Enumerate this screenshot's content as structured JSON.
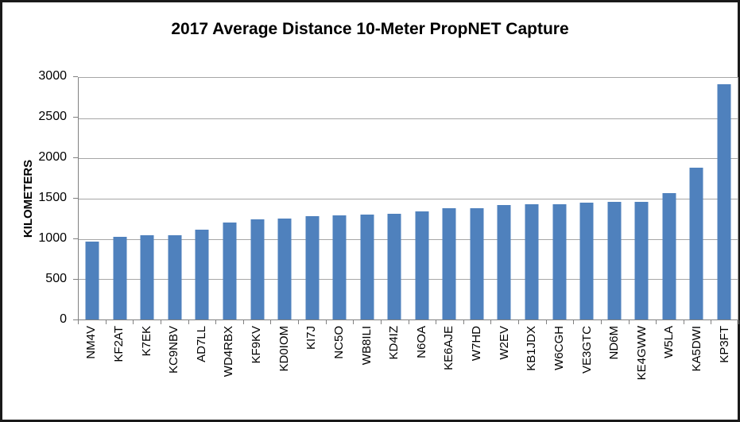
{
  "chart_data": {
    "type": "bar",
    "title": "2017 Average Distance 10-Meter PropNET Capture",
    "ylabel": "KILOMETERS",
    "xlabel": "",
    "categories": [
      "NM4V",
      "KF2AT",
      "K7EK",
      "KC9NBV",
      "AD7LL",
      "WD4RBX",
      "KF9KV",
      "KD0IOM",
      "KI7J",
      "NC5O",
      "WB8ILI",
      "KD4IZ",
      "N6OA",
      "KE6AJE",
      "W7HD",
      "W2EV",
      "KB1JDX",
      "W6CGH",
      "VE3GTC",
      "ND6M",
      "KE4GWW",
      "W5LA",
      "KA5DWI",
      "KP3FT"
    ],
    "values": [
      965,
      1025,
      1050,
      1050,
      1115,
      1205,
      1240,
      1250,
      1280,
      1295,
      1305,
      1315,
      1340,
      1385,
      1385,
      1425,
      1435,
      1430,
      1455,
      1465,
      1460,
      1570,
      1880,
      2920
    ],
    "ylim": [
      0,
      3000
    ],
    "ytick_step": 500,
    "ytick_labels": [
      "0",
      "500",
      "1000",
      "1500",
      "2000",
      "2500",
      "3000"
    ],
    "grid": true,
    "legend": false,
    "bar_color": "#4F81BD",
    "axis_color": "#808080",
    "gridline_color": "#A6A6A6",
    "title_color": "#000000"
  }
}
